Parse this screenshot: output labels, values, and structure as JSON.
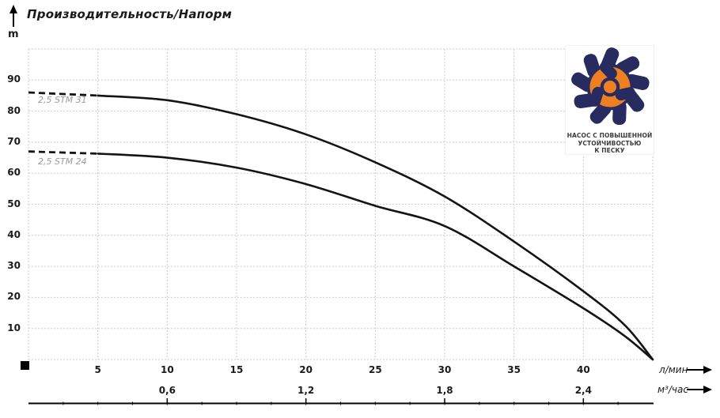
{
  "title": "Производительность/Напорм",
  "y_axis": {
    "unit": "m",
    "ticks": [
      90,
      80,
      70,
      60,
      50,
      40,
      30,
      20,
      10
    ]
  },
  "x_axis_lmin": {
    "unit": "л/мин",
    "ticks": [
      5,
      10,
      15,
      20,
      25,
      30,
      35,
      40
    ]
  },
  "x_axis_m3h": {
    "unit": "м³/час",
    "ticks": [
      {
        "q": 10,
        "label": "0,6"
      },
      {
        "q": 20,
        "label": "1,2"
      },
      {
        "q": 30,
        "label": "1,8"
      },
      {
        "q": 40,
        "label": "2,4"
      }
    ]
  },
  "logo": {
    "line1": "НАСОС С ПОВЫШЕННОЙ",
    "line2": "УСТОЙЧИВОСТЬЮ",
    "line3": "К ПЕСКУ"
  },
  "colors": {
    "curve": "#141414",
    "grid": "#cccccc",
    "curve_label": "#9b9b9b",
    "logo_navy": "#272b5f",
    "logo_orange": "#ef7f23"
  },
  "chart_data": {
    "type": "line",
    "title": "Производительность/Напорм",
    "ylabel": "m",
    "xlabel_primary": "л/мин",
    "xlabel_secondary": "м³/час",
    "xlim": [
      0,
      45
    ],
    "ylim": [
      0,
      100
    ],
    "grid": true,
    "x_gridline_step": 5,
    "y_gridline_step": 10,
    "series": [
      {
        "name": "2,5 STM 31",
        "x": [
          0,
          5,
          10,
          15,
          20,
          25,
          30,
          35,
          40,
          43,
          45
        ],
        "y": [
          86,
          85,
          83.5,
          79,
          72.5,
          63.5,
          52.5,
          38,
          22,
          11,
          0
        ],
        "dashed_until_x": 5
      },
      {
        "name": "2,5 STM 24",
        "x": [
          0,
          5,
          10,
          15,
          20,
          25,
          30,
          35,
          40,
          43,
          45
        ],
        "y": [
          67,
          66.3,
          65,
          61.8,
          56.5,
          49.5,
          43,
          30,
          16.5,
          7.5,
          0
        ],
        "dashed_until_x": 5
      }
    ]
  }
}
